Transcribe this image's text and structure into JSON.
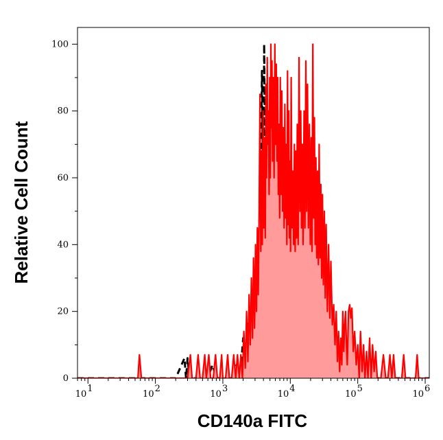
{
  "chart_data": {
    "type": "histogram",
    "xlabel": "CD140a FITC",
    "ylabel": "Relative Cell Count",
    "xscale": "log",
    "xlim": [
      7,
      1150000
    ],
    "ylim": [
      0,
      105
    ],
    "y_ticks": [
      "0",
      "20",
      "40",
      "60",
      "80",
      "100"
    ],
    "x_ticks": [
      {
        "base": "10",
        "exp": "1",
        "value": 10
      },
      {
        "base": "10",
        "exp": "2",
        "value": 100
      },
      {
        "base": "10",
        "exp": "3",
        "value": 1000
      },
      {
        "base": "10",
        "exp": "4",
        "value": 10000
      },
      {
        "base": "10",
        "exp": "5",
        "value": 100000
      },
      {
        "base": "10",
        "exp": "6",
        "value": 1000000
      }
    ],
    "series": [
      {
        "style": "dashed",
        "color": "#000000",
        "points": [
          [
            7,
            0
          ],
          [
            200,
            0
          ],
          [
            270,
            6
          ],
          [
            285,
            0
          ],
          [
            300,
            6
          ],
          [
            320,
            0
          ],
          [
            600,
            0
          ],
          [
            700,
            4
          ],
          [
            800,
            0
          ],
          [
            1500,
            0
          ],
          [
            1600,
            4
          ],
          [
            1800,
            0
          ],
          [
            2000,
            12
          ],
          [
            2150,
            3
          ],
          [
            2300,
            17
          ],
          [
            2500,
            6
          ],
          [
            2700,
            22
          ],
          [
            2900,
            10
          ],
          [
            3100,
            28
          ],
          [
            3300,
            15
          ],
          [
            3600,
            40
          ],
          [
            3800,
            92
          ],
          [
            4000,
            45
          ],
          [
            4100,
            100
          ],
          [
            4300,
            38
          ],
          [
            4500,
            70
          ],
          [
            4700,
            35
          ],
          [
            4900,
            58
          ],
          [
            5100,
            32
          ],
          [
            5400,
            55
          ],
          [
            5700,
            30
          ],
          [
            6000,
            50
          ],
          [
            6300,
            28
          ],
          [
            6600,
            46
          ],
          [
            6900,
            25
          ],
          [
            7300,
            42
          ],
          [
            7700,
            22
          ],
          [
            8100,
            44
          ],
          [
            8500,
            20
          ],
          [
            9000,
            38
          ],
          [
            9500,
            18
          ],
          [
            10000,
            33
          ],
          [
            10800,
            17
          ],
          [
            11600,
            28
          ],
          [
            12500,
            14
          ],
          [
            13500,
            22
          ],
          [
            14500,
            12
          ],
          [
            15500,
            18
          ],
          [
            17000,
            10
          ],
          [
            18500,
            14
          ],
          [
            20000,
            7
          ],
          [
            22000,
            11
          ],
          [
            24000,
            5
          ],
          [
            26000,
            8
          ],
          [
            28000,
            3
          ],
          [
            30000,
            6
          ],
          [
            33000,
            2
          ],
          [
            40000,
            0
          ],
          [
            1150000,
            0
          ]
        ]
      },
      {
        "style": "filled",
        "color": "#ff0000",
        "fill": "#ff9b9b",
        "points": [
          [
            7,
            0
          ],
          [
            55,
            0
          ],
          [
            58,
            7
          ],
          [
            62,
            0
          ],
          [
            300,
            0
          ],
          [
            330,
            7
          ],
          [
            350,
            0
          ],
          [
            400,
            0
          ],
          [
            430,
            7
          ],
          [
            460,
            0
          ],
          [
            500,
            0
          ],
          [
            540,
            7
          ],
          [
            570,
            0
          ],
          [
            620,
            7
          ],
          [
            660,
            0
          ],
          [
            720,
            0
          ],
          [
            780,
            7
          ],
          [
            830,
            0
          ],
          [
            900,
            0
          ],
          [
            960,
            7
          ],
          [
            1000,
            0
          ],
          [
            1100,
            0
          ],
          [
            1180,
            7
          ],
          [
            1250,
            0
          ],
          [
            1350,
            0
          ],
          [
            1450,
            7
          ],
          [
            1550,
            0
          ],
          [
            1650,
            7
          ],
          [
            1750,
            0
          ],
          [
            1850,
            7
          ],
          [
            1950,
            0
          ],
          [
            2050,
            14
          ],
          [
            2150,
            3
          ],
          [
            2250,
            20
          ],
          [
            2350,
            5
          ],
          [
            2450,
            25
          ],
          [
            2550,
            10
          ],
          [
            2650,
            30
          ],
          [
            2750,
            12
          ],
          [
            2850,
            36
          ],
          [
            2950,
            15
          ],
          [
            3050,
            40
          ],
          [
            3150,
            20
          ],
          [
            3250,
            45
          ],
          [
            3350,
            25
          ],
          [
            3450,
            50
          ],
          [
            3550,
            85
          ],
          [
            3650,
            38
          ],
          [
            3750,
            68
          ],
          [
            3850,
            40
          ],
          [
            3950,
            80
          ],
          [
            4050,
            45
          ],
          [
            4150,
            72
          ],
          [
            4250,
            42
          ],
          [
            4350,
            88
          ],
          [
            4450,
            60
          ],
          [
            4550,
            96
          ],
          [
            4650,
            70
          ],
          [
            4750,
            80
          ],
          [
            4850,
            55
          ],
          [
            4950,
            90
          ],
          [
            5050,
            60
          ],
          [
            5150,
            100
          ],
          [
            5250,
            75
          ],
          [
            5350,
            95
          ],
          [
            5450,
            65
          ],
          [
            5600,
            90
          ],
          [
            5750,
            60
          ],
          [
            5900,
            100
          ],
          [
            6050,
            70
          ],
          [
            6200,
            94
          ],
          [
            6350,
            65
          ],
          [
            6500,
            90
          ],
          [
            6650,
            55
          ],
          [
            6800,
            76
          ],
          [
            6950,
            48
          ],
          [
            7100,
            90
          ],
          [
            7300,
            55
          ],
          [
            7500,
            86
          ],
          [
            7700,
            50
          ],
          [
            7900,
            75
          ],
          [
            8100,
            45
          ],
          [
            8300,
            82
          ],
          [
            8500,
            48
          ],
          [
            8700,
            70
          ],
          [
            8900,
            40
          ],
          [
            9100,
            92
          ],
          [
            9300,
            46
          ],
          [
            9500,
            80
          ],
          [
            9700,
            42
          ],
          [
            9900,
            65
          ],
          [
            10100,
            38
          ],
          [
            10300,
            90
          ],
          [
            10600,
            45
          ],
          [
            10900,
            62
          ],
          [
            11200,
            40
          ],
          [
            11500,
            70
          ],
          [
            11800,
            38
          ],
          [
            12100,
            68
          ],
          [
            12400,
            42
          ],
          [
            12700,
            76
          ],
          [
            13100,
            40
          ],
          [
            13500,
            96
          ],
          [
            13900,
            50
          ],
          [
            14300,
            80
          ],
          [
            14700,
            45
          ],
          [
            15100,
            70
          ],
          [
            15500,
            40
          ],
          [
            16000,
            80
          ],
          [
            16500,
            45
          ],
          [
            17000,
            95
          ],
          [
            17500,
            50
          ],
          [
            18000,
            88
          ],
          [
            18600,
            45
          ],
          [
            19200,
            76
          ],
          [
            19800,
            40
          ],
          [
            20400,
            72
          ],
          [
            21000,
            38
          ],
          [
            21600,
            100
          ],
          [
            22200,
            48
          ],
          [
            22800,
            78
          ],
          [
            23400,
            40
          ],
          [
            24000,
            66
          ],
          [
            24700,
            36
          ],
          [
            25400,
            62
          ],
          [
            26100,
            34
          ],
          [
            26800,
            70
          ],
          [
            27600,
            36
          ],
          [
            28400,
            58
          ],
          [
            29200,
            30
          ],
          [
            30000,
            55
          ],
          [
            31000,
            28
          ],
          [
            32000,
            50
          ],
          [
            33000,
            24
          ],
          [
            34000,
            46
          ],
          [
            35500,
            20
          ],
          [
            37000,
            40
          ],
          [
            38500,
            18
          ],
          [
            40000,
            35
          ],
          [
            42000,
            16
          ],
          [
            44000,
            22
          ],
          [
            46000,
            10
          ],
          [
            48000,
            20
          ],
          [
            50000,
            5
          ],
          [
            52000,
            14
          ],
          [
            54000,
            2
          ],
          [
            56000,
            12
          ],
          [
            58000,
            4
          ],
          [
            60000,
            20
          ],
          [
            62000,
            8
          ],
          [
            64000,
            16
          ],
          [
            66000,
            20
          ],
          [
            68000,
            10
          ],
          [
            70000,
            4
          ],
          [
            73000,
            20
          ],
          [
            76000,
            22
          ],
          [
            79000,
            18
          ],
          [
            82000,
            21
          ],
          [
            86000,
            8
          ],
          [
            90000,
            14
          ],
          [
            95000,
            4
          ],
          [
            100000,
            10
          ],
          [
            105000,
            0
          ],
          [
            110000,
            14
          ],
          [
            116000,
            2
          ],
          [
            122000,
            10
          ],
          [
            128000,
            0
          ],
          [
            135000,
            8
          ],
          [
            142000,
            0
          ],
          [
            150000,
            12
          ],
          [
            158000,
            0
          ],
          [
            166000,
            10
          ],
          [
            175000,
            2
          ],
          [
            185000,
            8
          ],
          [
            195000,
            0
          ],
          [
            220000,
            0
          ],
          [
            240000,
            7
          ],
          [
            260000,
            0
          ],
          [
            280000,
            0
          ],
          [
            300000,
            7
          ],
          [
            320000,
            0
          ],
          [
            340000,
            7
          ],
          [
            360000,
            0
          ],
          [
            450000,
            0
          ],
          [
            480000,
            7
          ],
          [
            510000,
            0
          ],
          [
            720000,
            0
          ],
          [
            760000,
            7
          ],
          [
            800000,
            0
          ],
          [
            1150000,
            0
          ]
        ]
      }
    ]
  }
}
